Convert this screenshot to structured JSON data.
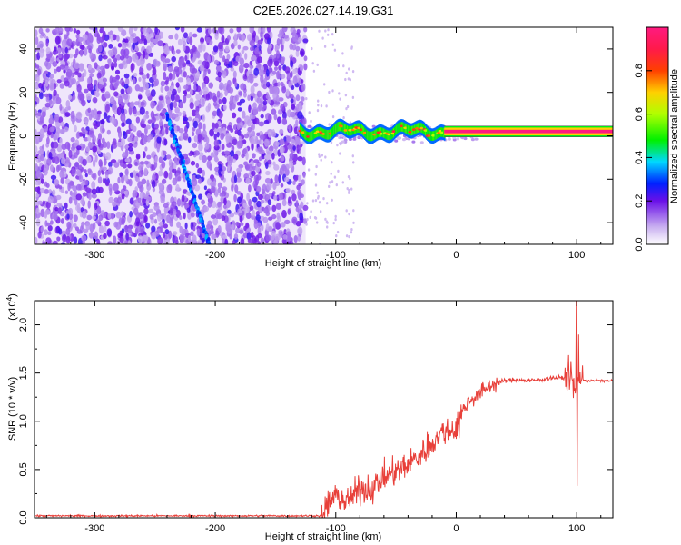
{
  "title": "C2E5.2026.027.14.19.G31",
  "chart_data": [
    {
      "type": "heatmap",
      "name": "spectrogram",
      "xlabel": "Height of straight line (km)",
      "ylabel": "Frequency (Hz)",
      "xlim": [
        -350,
        130
      ],
      "ylim": [
        -50,
        50
      ],
      "xticks": [
        -300,
        -200,
        -100,
        0,
        100
      ],
      "yticks": [
        -40,
        -20,
        0,
        20,
        40
      ],
      "xtick_labels": [
        "-300",
        "-200",
        "-100",
        "0",
        "100"
      ],
      "ytick_labels": [
        "-40",
        "-20",
        "0",
        "20",
        "40"
      ],
      "noise_region": {
        "x_from": -350,
        "x_to": -125,
        "freq_from": -50,
        "freq_to": 50,
        "amplitude": "0.2-0.4"
      },
      "sweep_track": {
        "x_from": -240,
        "x_to": -205,
        "freq_from": 10,
        "freq_to": -50,
        "amplitude": 0.3
      },
      "carrier_band": {
        "x_from": -130,
        "x_to": 130,
        "freq_center": 2,
        "bandwidth_hz": 5,
        "amplitude": 1.0
      },
      "colorbar": {
        "label": "Normalized spectral amplitude",
        "range": [
          0,
          1
        ],
        "ticks": [
          0.0,
          0.2,
          0.4,
          0.6,
          0.8
        ],
        "tick_labels": [
          "0.0",
          "0.2",
          "0.4",
          "0.6",
          "0.8"
        ]
      }
    },
    {
      "type": "line",
      "name": "snr",
      "xlabel": "Height of straight line (km)",
      "ylabel": "SNR (10 * v/v)",
      "exponent_label": "(x10",
      "exponent_power": "4",
      "exponent_close": ")",
      "xlim": [
        -350,
        130
      ],
      "ylim": [
        0,
        2.25
      ],
      "xticks": [
        -300,
        -200,
        -100,
        0,
        100
      ],
      "yticks": [
        0.0,
        0.5,
        1.0,
        1.5,
        2.0
      ],
      "xtick_labels": [
        "-300",
        "-200",
        "-100",
        "0",
        "100"
      ],
      "ytick_labels": [
        "0.0",
        "0.5",
        "1.0",
        "1.5",
        "2.0"
      ],
      "series": [
        {
          "name": "SNR",
          "color": "#e8403a",
          "x": [
            -350,
            -110,
            -105,
            -100,
            -90,
            -80,
            -70,
            -60,
            -50,
            -40,
            -30,
            -20,
            -10,
            0,
            5,
            10,
            20,
            30,
            40,
            50,
            60,
            70,
            80,
            90,
            95,
            98,
            100,
            102,
            105,
            110,
            120,
            130
          ],
          "y": [
            0.02,
            0.02,
            0.18,
            0.22,
            0.16,
            0.3,
            0.3,
            0.42,
            0.48,
            0.55,
            0.65,
            0.78,
            0.9,
            0.92,
            1.1,
            1.2,
            1.3,
            1.38,
            1.42,
            1.43,
            1.42,
            1.43,
            1.45,
            1.45,
            1.5,
            1.3,
            1.35,
            1.45,
            1.43,
            1.42,
            1.42,
            1.42
          ]
        }
      ],
      "noise_amplitude": [
        {
          "x_from": -350,
          "x_to": -112,
          "amp": 0.01
        },
        {
          "x_from": -112,
          "x_to": 5,
          "amp": 0.16
        },
        {
          "x_from": 5,
          "x_to": 35,
          "amp": 0.09
        },
        {
          "x_from": 35,
          "x_to": 90,
          "amp": 0.025
        },
        {
          "x_from": 90,
          "x_to": 105,
          "amp": 0.16
        },
        {
          "x_from": 105,
          "x_to": 130,
          "amp": 0.015
        }
      ],
      "spikes": [
        {
          "x": 99.5,
          "y": 2.25
        },
        {
          "x": 100.5,
          "y": 0.33
        },
        {
          "x": 101.5,
          "y": 1.9
        }
      ]
    }
  ]
}
